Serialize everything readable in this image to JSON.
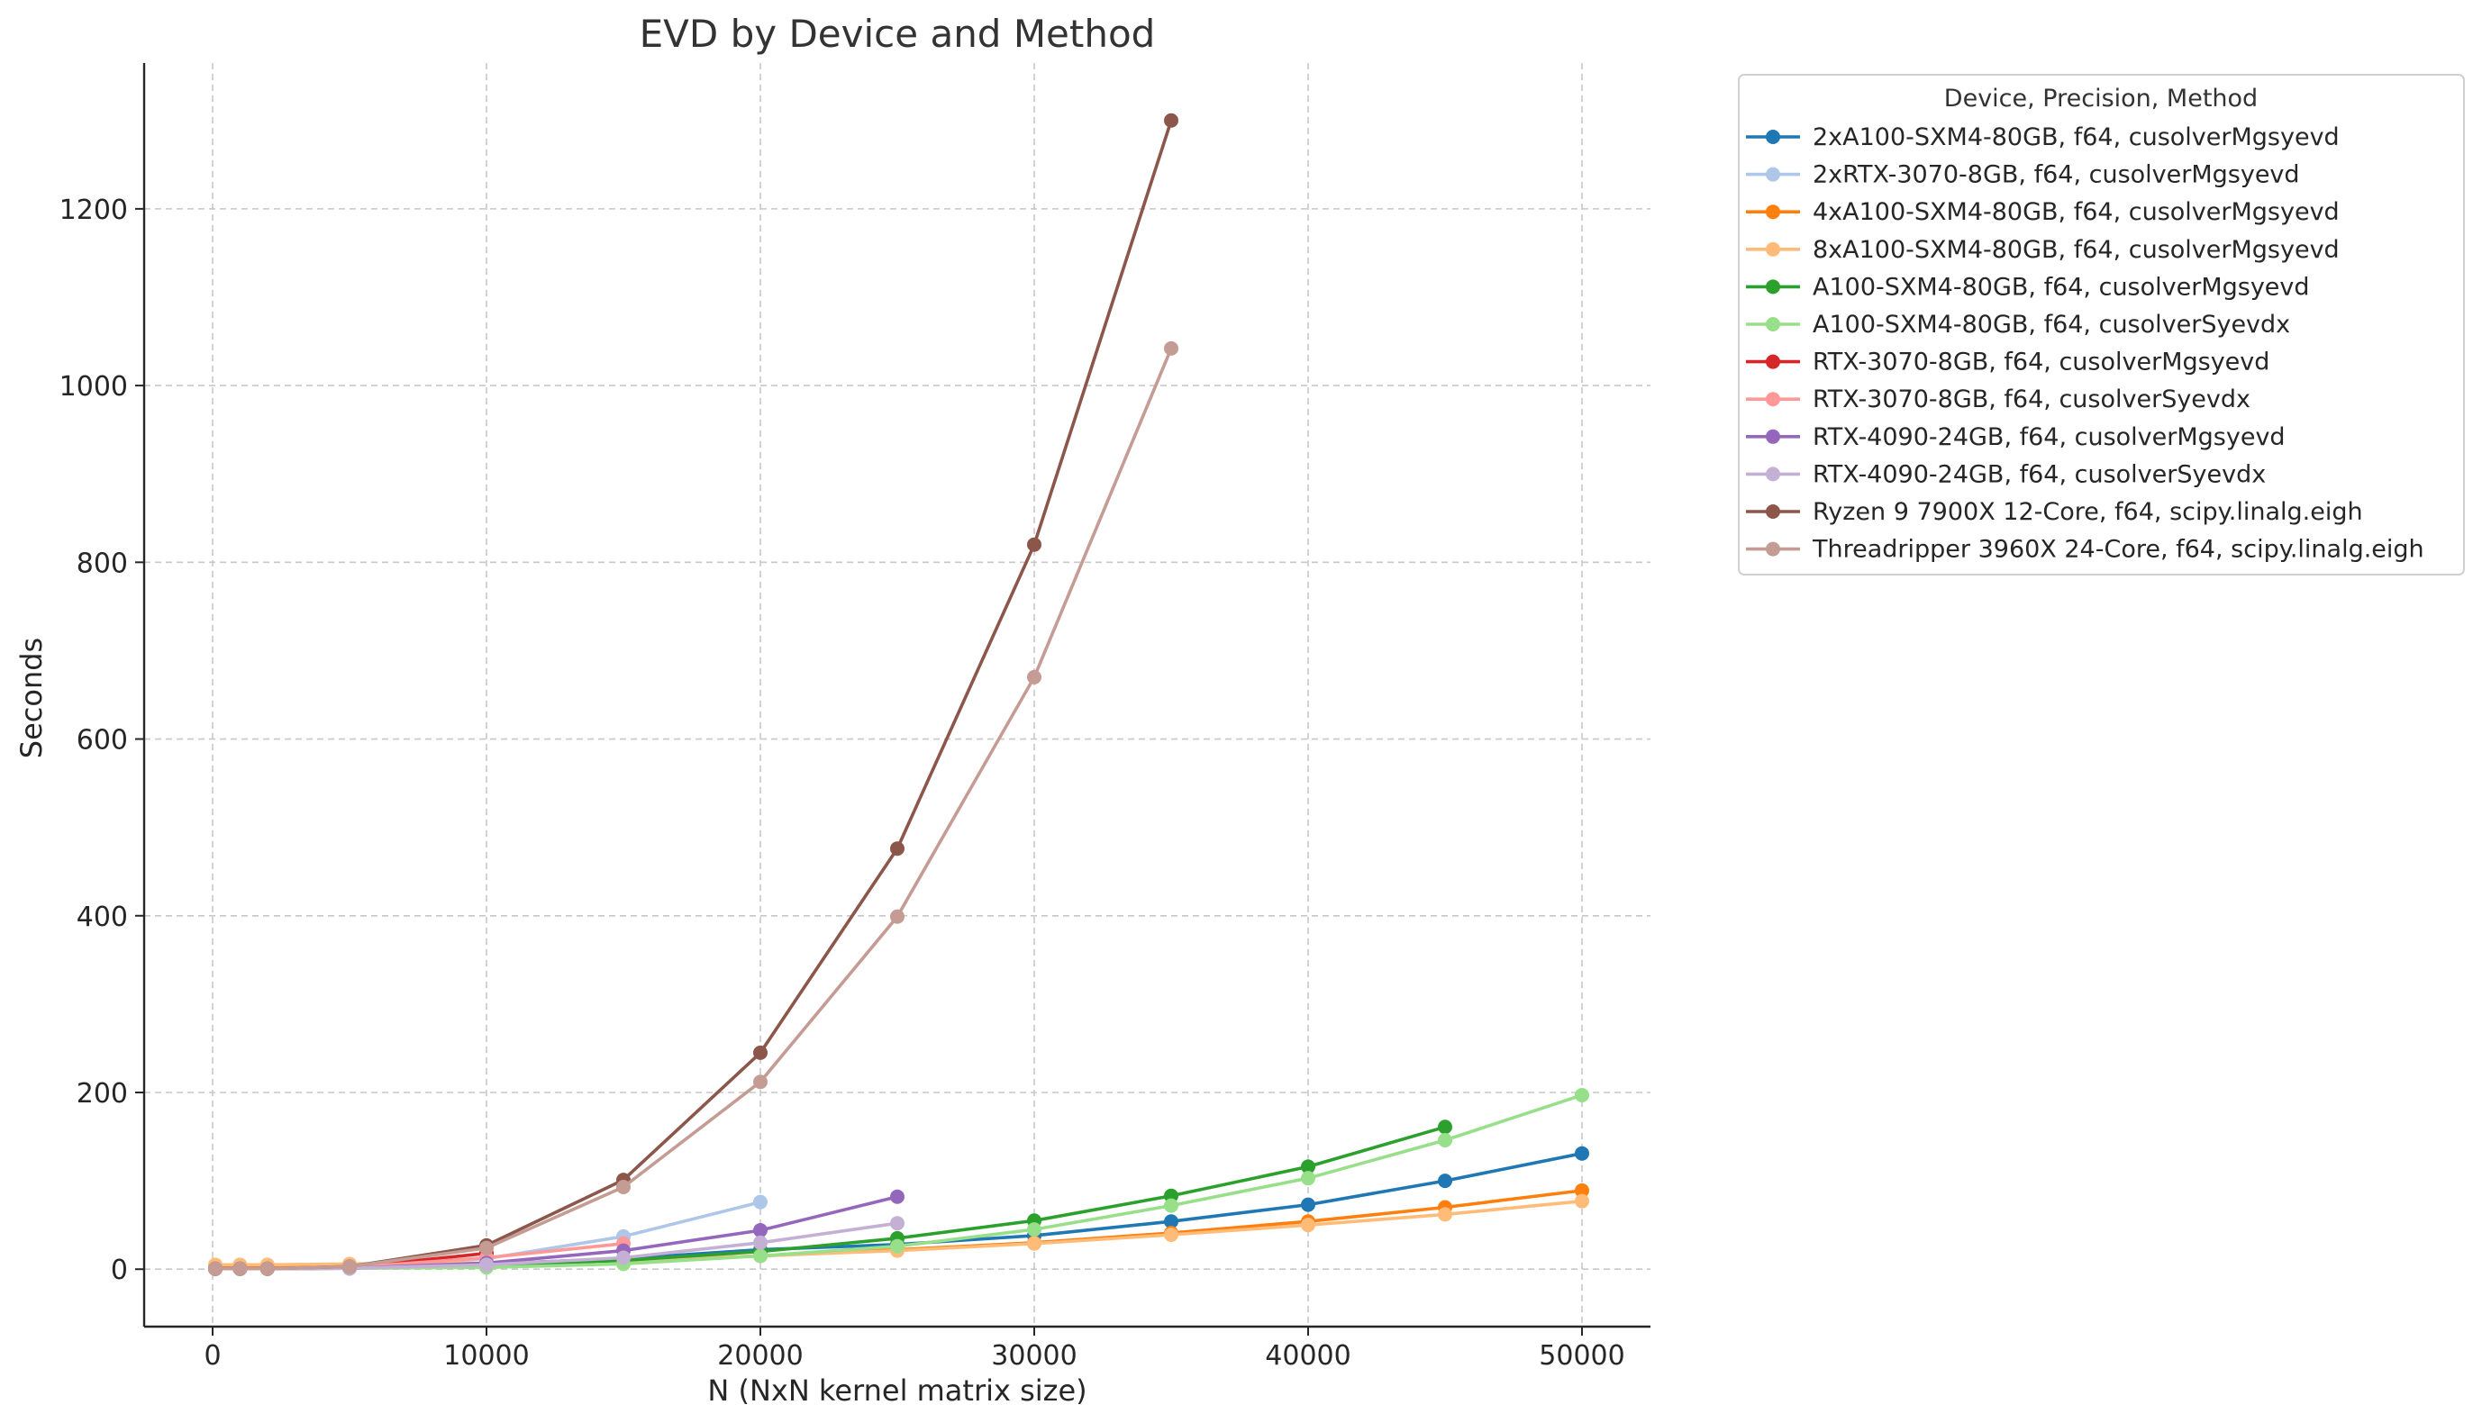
{
  "chart_data": {
    "type": "line",
    "title": "EVD by Device and Method",
    "xlabel": "N (NxN kernel matrix size)",
    "ylabel": "Seconds",
    "xlim": [
      -2500,
      52500
    ],
    "ylim": [
      -65,
      1365
    ],
    "xticks": [
      0,
      10000,
      20000,
      30000,
      40000,
      50000
    ],
    "yticks": [
      0,
      200,
      400,
      600,
      800,
      1000,
      1200
    ],
    "grid": true,
    "legend_title": "Device, Precision, Method",
    "legend_position": "outside-top-right",
    "series": [
      {
        "name": "2xA100-SXM4-80GB, f64,  cusolverMgsyevd",
        "color": "#1f77b4",
        "x": [
          100,
          1000,
          2000,
          5000,
          10000,
          15000,
          20000,
          25000,
          30000,
          35000,
          40000,
          45000,
          50000
        ],
        "y": [
          1.5,
          1.5,
          1.5,
          2,
          6,
          12,
          22,
          28,
          38,
          54,
          73,
          100,
          131
        ]
      },
      {
        "name": "2xRTX-3070-8GB, f64,  cusolverMgsyevd",
        "color": "#aec7e8",
        "x": [
          100,
          1000,
          2000,
          5000,
          10000,
          15000,
          20000
        ],
        "y": [
          1,
          1,
          1,
          2,
          12,
          37,
          76
        ]
      },
      {
        "name": "4xA100-SXM4-80GB, f64,  cusolverMgsyevd",
        "color": "#ff7f0e",
        "x": [
          100,
          1000,
          2000,
          5000,
          10000,
          15000,
          20000,
          25000,
          30000,
          35000,
          40000,
          45000,
          50000
        ],
        "y": [
          4,
          4,
          4,
          4,
          6,
          10,
          15,
          22,
          30,
          41,
          54,
          70,
          89
        ]
      },
      {
        "name": "8xA100-SXM4-80GB, f64,  cusolverMgsyevd",
        "color": "#ffbb78",
        "x": [
          100,
          1000,
          2000,
          5000,
          10000,
          15000,
          20000,
          25000,
          30000,
          35000,
          40000,
          45000,
          50000
        ],
        "y": [
          5,
          5,
          5,
          6,
          7,
          10,
          15,
          21,
          29,
          39,
          50,
          62,
          77
        ]
      },
      {
        "name": "A100-SXM4-80GB, f64,  cusolverMgsyevd",
        "color": "#2ca02c",
        "x": [
          100,
          1000,
          2000,
          5000,
          10000,
          15000,
          20000,
          25000,
          30000,
          35000,
          40000,
          45000
        ],
        "y": [
          0.5,
          0.5,
          0.5,
          1,
          4,
          10,
          20,
          35,
          55,
          83,
          116,
          161
        ]
      },
      {
        "name": "A100-SXM4-80GB, f64,  cusolverSyevdx",
        "color": "#98df8a",
        "x": [
          100,
          1000,
          2000,
          5000,
          10000,
          15000,
          20000,
          25000,
          30000,
          35000,
          40000,
          45000,
          50000
        ],
        "y": [
          0.5,
          0.5,
          0.5,
          1,
          2,
          6,
          15,
          26,
          45,
          72,
          103,
          146,
          197
        ]
      },
      {
        "name": "RTX-3070-8GB, f64,  cusolverMgsyevd",
        "color": "#d62728",
        "x": [
          100,
          1000,
          2000,
          5000,
          10000
        ],
        "y": [
          0.5,
          0.5,
          0.5,
          2,
          18
        ]
      },
      {
        "name": "RTX-3070-8GB, f64,  cusolverSyevdx",
        "color": "#ff9896",
        "x": [
          100,
          1000,
          2000,
          5000,
          10000,
          15000
        ],
        "y": [
          0.5,
          0.5,
          0.5,
          2,
          13,
          29
        ]
      },
      {
        "name": "RTX-4090-24GB, f64,  cusolverMgsyevd",
        "color": "#9467bd",
        "x": [
          100,
          1000,
          2000,
          5000,
          10000,
          15000,
          20000,
          25000
        ],
        "y": [
          0.5,
          0.5,
          0.5,
          1,
          7,
          21,
          44,
          82
        ]
      },
      {
        "name": "RTX-4090-24GB, f64,  cusolverSyevdx",
        "color": "#c5b0d5",
        "x": [
          100,
          1000,
          2000,
          5000,
          10000,
          15000,
          20000,
          25000
        ],
        "y": [
          0.5,
          0.5,
          0.5,
          1,
          5,
          13,
          30,
          52
        ]
      },
      {
        "name": "Ryzen 9 7900X 12-Core, f64,  scipy.linalg.eigh",
        "color": "#8c564b",
        "x": [
          100,
          1000,
          2000,
          5000,
          10000,
          15000,
          20000,
          25000,
          30000,
          35000
        ],
        "y": [
          0.5,
          0.5,
          0.5,
          3,
          27,
          101,
          245,
          476,
          820,
          1300
        ]
      },
      {
        "name": "Threadripper 3960X 24-Core, f64,  scipy.linalg.eigh",
        "color": "#c49c94",
        "x": [
          100,
          1000,
          2000,
          5000,
          10000,
          15000,
          20000,
          25000,
          30000,
          35000
        ],
        "y": [
          0.5,
          0.5,
          0.5,
          3,
          24,
          93,
          212,
          399,
          670,
          1042
        ]
      }
    ]
  }
}
